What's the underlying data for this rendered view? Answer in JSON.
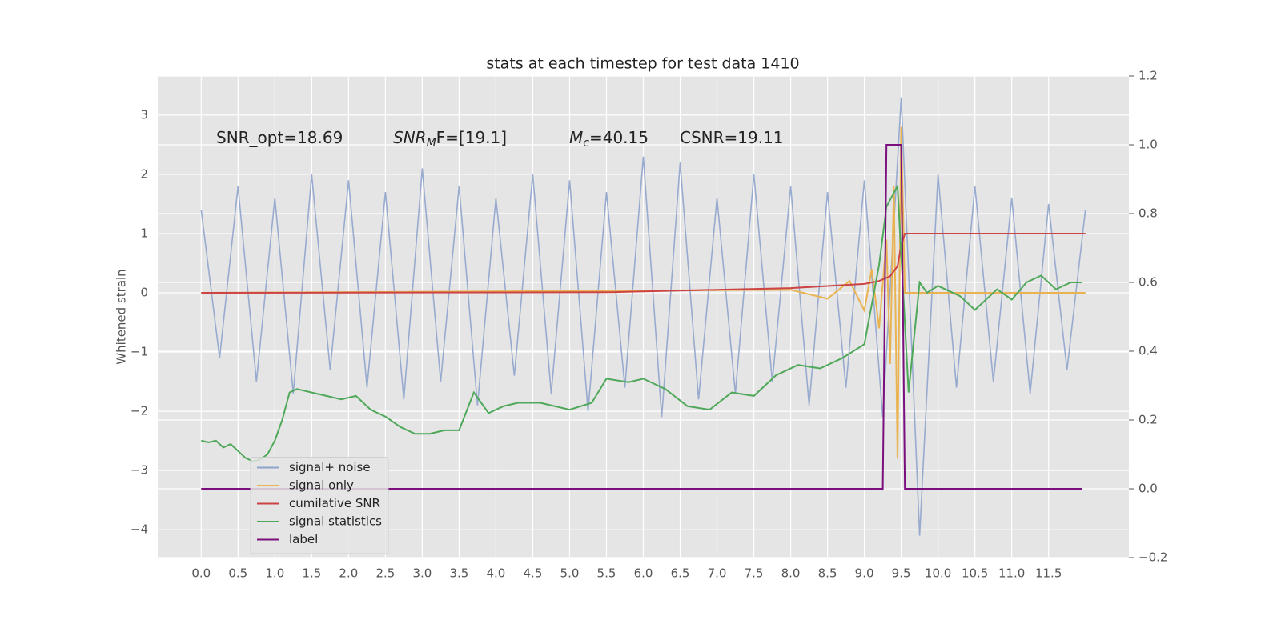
{
  "chart_data": {
    "type": "line",
    "title": "stats at each timestep for test data 1410",
    "ylabel": "Whitened strain",
    "annotations": [
      {
        "text": "SNR_opt=18.69"
      },
      {
        "text": "SNR",
        "sub": "M",
        "rest": "F=[19.1]"
      },
      {
        "text": "M",
        "sub": "c",
        "rest": "=40.15"
      },
      {
        "text": "CSNR=19.11"
      }
    ],
    "xlim": [
      -0.59,
      12.59
    ],
    "ylim": [
      -4.47,
      3.66
    ],
    "y2lim": [
      -0.2,
      1.2
    ],
    "xticks": [
      {
        "value": 0,
        "label": "0.0"
      },
      {
        "value": 0.5,
        "label": "0.5"
      },
      {
        "value": 1,
        "label": "1.0"
      },
      {
        "value": 1.5,
        "label": "1.5"
      },
      {
        "value": 2,
        "label": "2.0"
      },
      {
        "value": 2.5,
        "label": "2.5"
      },
      {
        "value": 3,
        "label": "3.0"
      },
      {
        "value": 3.5,
        "label": "3.5"
      },
      {
        "value": 4,
        "label": "4.0"
      },
      {
        "value": 4.5,
        "label": "4.5"
      },
      {
        "value": 5,
        "label": "5.0"
      },
      {
        "value": 5.5,
        "label": "5.5"
      },
      {
        "value": 6,
        "label": "6.0"
      },
      {
        "value": 6.5,
        "label": "6.5"
      },
      {
        "value": 7,
        "label": "7.0"
      },
      {
        "value": 7.5,
        "label": "7.5"
      },
      {
        "value": 8,
        "label": "8.0"
      },
      {
        "value": 8.5,
        "label": "8.5"
      },
      {
        "value": 9,
        "label": "9.0"
      },
      {
        "value": 9.5,
        "label": "9.5"
      },
      {
        "value": 10,
        "label": "10.0"
      },
      {
        "value": 10.5,
        "label": "10.5"
      },
      {
        "value": 11,
        "label": "11.0"
      },
      {
        "value": 11.5,
        "label": "11.5"
      }
    ],
    "yticks": [
      {
        "value": -4,
        "label": "−4"
      },
      {
        "value": -3,
        "label": "−3"
      },
      {
        "value": -2,
        "label": "−2"
      },
      {
        "value": -1,
        "label": "−1"
      },
      0,
      1,
      2,
      3
    ],
    "y2ticks": [
      {
        "value": -0.2,
        "label": "−0.2"
      },
      {
        "value": 0,
        "label": "0.0"
      },
      {
        "value": 0.2,
        "label": "0.2"
      },
      {
        "value": 0.4,
        "label": "0.4"
      },
      {
        "value": 0.6,
        "label": "0.6"
      },
      {
        "value": 0.8,
        "label": "0.8"
      },
      {
        "value": 1,
        "label": "1.0"
      },
      {
        "value": 1.2,
        "label": "1.2"
      }
    ],
    "grid": true,
    "legend": "lower left",
    "series": [
      {
        "name": "signal+ noise",
        "color": "#8fa4cc",
        "x": [
          0,
          0.25,
          0.5,
          0.75,
          1,
          1.25,
          1.5,
          1.75,
          2,
          2.25,
          2.5,
          2.75,
          3,
          3.25,
          3.5,
          3.75,
          4,
          4.25,
          4.5,
          4.75,
          5,
          5.25,
          5.5,
          5.75,
          6,
          6.25,
          6.5,
          6.75,
          7,
          7.25,
          7.5,
          7.75,
          8,
          8.25,
          8.5,
          8.75,
          9,
          9.25,
          9.5,
          9.75,
          10,
          10.25,
          10.5,
          10.75,
          11,
          11.25,
          11.5,
          11.75,
          12
        ],
        "values": [
          1.4,
          -1.1,
          1.8,
          -1.5,
          1.6,
          -1.7,
          2.0,
          -1.3,
          1.9,
          -1.6,
          1.7,
          -1.8,
          2.1,
          -1.5,
          1.8,
          -1.9,
          1.6,
          -1.4,
          2.0,
          -1.7,
          1.9,
          -2.0,
          1.7,
          -1.6,
          2.3,
          -2.1,
          2.2,
          -1.8,
          1.6,
          -1.7,
          2.0,
          -1.5,
          1.8,
          -1.9,
          1.7,
          -1.6,
          1.9,
          -2.1,
          3.3,
          -4.1,
          2.0,
          -1.6,
          1.8,
          -1.5,
          1.6,
          -1.7,
          1.5,
          -1.3,
          1.4
        ]
      },
      {
        "name": "signal only",
        "color": "#eab352",
        "x": [
          0,
          8,
          8.5,
          8.8,
          9,
          9.1,
          9.2,
          9.3,
          9.35,
          9.4,
          9.45,
          9.5,
          9.55,
          12
        ],
        "values": [
          0,
          0.05,
          -0.1,
          0.2,
          -0.3,
          0.4,
          -0.6,
          0.9,
          -1.2,
          1.8,
          -2.8,
          2.8,
          0,
          0
        ]
      },
      {
        "name": "cumilative SNR",
        "color": "#cc4444",
        "x": [
          0,
          5.5,
          8,
          9,
          9.2,
          9.35,
          9.45,
          9.5,
          9.55,
          12
        ],
        "values": [
          0,
          0.01,
          0.08,
          0.15,
          0.2,
          0.28,
          0.45,
          0.8,
          1,
          1
        ]
      },
      {
        "name": "signal statistics",
        "color": "#4fa85a",
        "axis": "y2",
        "x": [
          0,
          0.1,
          0.2,
          0.3,
          0.4,
          0.5,
          0.6,
          0.7,
          0.8,
          0.9,
          1,
          1.1,
          1.2,
          1.3,
          1.5,
          1.7,
          1.9,
          2.1,
          2.3,
          2.5,
          2.7,
          2.9,
          3.1,
          3.3,
          3.5,
          3.7,
          3.9,
          4.1,
          4.3,
          4.6,
          5,
          5.3,
          5.5,
          5.8,
          6,
          6.3,
          6.6,
          6.9,
          7.2,
          7.5,
          7.8,
          8.1,
          8.4,
          8.7,
          9,
          9.2,
          9.3,
          9.45,
          9.6,
          9.75,
          9.85,
          10,
          10.3,
          10.5,
          10.8,
          11,
          11.2,
          11.4,
          11.6,
          11.8,
          11.95
        ],
        "values": [
          0.14,
          0.135,
          0.14,
          0.12,
          0.13,
          0.11,
          0.09,
          0.08,
          0.085,
          0.1,
          0.14,
          0.2,
          0.28,
          0.29,
          0.28,
          0.27,
          0.26,
          0.27,
          0.23,
          0.21,
          0.18,
          0.16,
          0.16,
          0.17,
          0.17,
          0.28,
          0.22,
          0.24,
          0.25,
          0.25,
          0.23,
          0.25,
          0.32,
          0.31,
          0.32,
          0.29,
          0.24,
          0.23,
          0.28,
          0.27,
          0.33,
          0.36,
          0.35,
          0.38,
          0.42,
          0.65,
          0.82,
          0.88,
          0.28,
          0.6,
          0.57,
          0.59,
          0.56,
          0.52,
          0.58,
          0.55,
          0.6,
          0.62,
          0.58,
          0.6,
          0.6
        ]
      },
      {
        "name": "label",
        "color": "#7a0f7e",
        "axis": "y2",
        "x": [
          0,
          9.25,
          9.3,
          9.5,
          9.55,
          11.95
        ],
        "values": [
          0,
          0,
          1,
          1,
          0,
          0
        ]
      }
    ]
  }
}
